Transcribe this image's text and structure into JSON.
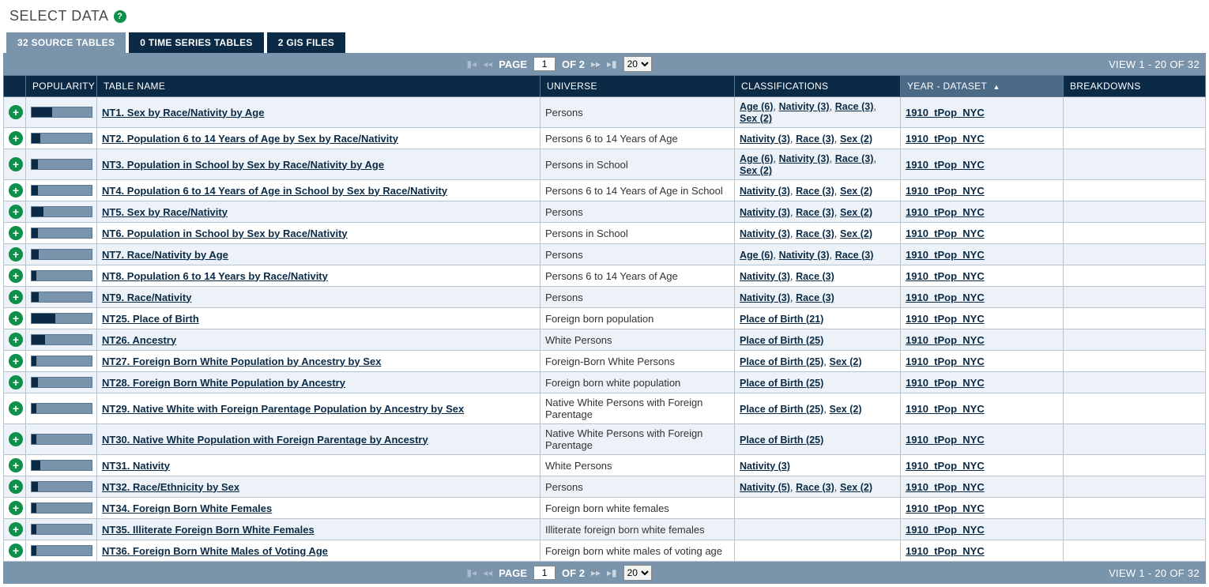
{
  "title": "SELECT DATA",
  "tabs": [
    {
      "label": "32 SOURCE TABLES",
      "active": true
    },
    {
      "label": "0 TIME SERIES TABLES",
      "active": false
    },
    {
      "label": "2 GIS FILES",
      "active": false
    }
  ],
  "pager": {
    "page_label": "PAGE",
    "page_value": "1",
    "of_label": "OF 2",
    "per_page": "20",
    "per_page_options": [
      "20"
    ],
    "view_range": "VIEW 1 - 20 OF 32"
  },
  "columns": {
    "add": "",
    "popularity": "POPULARITY",
    "name": "TABLE NAME",
    "universe": "UNIVERSE",
    "classifications": "CLASSIFICATIONS",
    "year": "YEAR - DATASET",
    "breakdowns": "BREAKDOWNS"
  },
  "rows": [
    {
      "pop": 34,
      "name": "NT1. Sex by Race/Nativity by Age",
      "universe": "Persons",
      "class": [
        [
          "Age (6)"
        ],
        [
          "Nativity (3)"
        ],
        [
          "Race (3)"
        ],
        [
          "Sex (2)"
        ]
      ],
      "year": "1910_tPop_NYC"
    },
    {
      "pop": 15,
      "name": "NT2. Population 6 to 14 Years of Age by Sex by Race/Nativity",
      "universe": "Persons 6 to 14 Years of Age",
      "class": [
        [
          "Nativity (3)"
        ],
        [
          "Race (3)"
        ],
        [
          "Sex (2)"
        ]
      ],
      "year": "1910_tPop_NYC"
    },
    {
      "pop": 10,
      "name": "NT3. Population in School by Sex by Race/Nativity by Age",
      "universe": "Persons in School",
      "class": [
        [
          "Age (6)"
        ],
        [
          "Nativity (3)"
        ],
        [
          "Race (3)"
        ],
        [
          "Sex (2)"
        ]
      ],
      "year": "1910_tPop_NYC"
    },
    {
      "pop": 10,
      "name": "NT4. Population 6 to 14 Years of Age in School by Sex by Race/Nativity",
      "universe": "Persons 6 to 14 Years of Age in School",
      "class": [
        [
          "Nativity (3)"
        ],
        [
          "Race (3)"
        ],
        [
          "Sex (2)"
        ]
      ],
      "year": "1910_tPop_NYC"
    },
    {
      "pop": 20,
      "name": "NT5. Sex by Race/Nativity",
      "universe": "Persons",
      "class": [
        [
          "Nativity (3)"
        ],
        [
          "Race (3)"
        ],
        [
          "Sex (2)"
        ]
      ],
      "year": "1910_tPop_NYC"
    },
    {
      "pop": 10,
      "name": "NT6. Population in School by Sex by Race/Nativity",
      "universe": "Persons in School",
      "class": [
        [
          "Nativity (3)"
        ],
        [
          "Race (3)"
        ],
        [
          "Sex (2)"
        ]
      ],
      "year": "1910_tPop_NYC"
    },
    {
      "pop": 12,
      "name": "NT7. Race/Nativity by Age",
      "universe": "Persons",
      "class": [
        [
          "Age (6)"
        ],
        [
          "Nativity (3)"
        ],
        [
          "Race (3)"
        ]
      ],
      "year": "1910_tPop_NYC"
    },
    {
      "pop": 8,
      "name": "NT8. Population 6 to 14 Years by Race/Nativity",
      "universe": "Persons 6 to 14 Years of Age",
      "class": [
        [
          "Nativity (3)"
        ],
        [
          "Race (3)"
        ]
      ],
      "year": "1910_tPop_NYC"
    },
    {
      "pop": 12,
      "name": "NT9. Race/Nativity",
      "universe": "Persons",
      "class": [
        [
          "Nativity (3)"
        ],
        [
          "Race (3)"
        ]
      ],
      "year": "1910_tPop_NYC"
    },
    {
      "pop": 40,
      "name": "NT25. Place of Birth",
      "universe": "Foreign born population",
      "class": [
        [
          "Place of Birth (21)"
        ]
      ],
      "year": "1910_tPop_NYC"
    },
    {
      "pop": 22,
      "name": "NT26. Ancestry",
      "universe": "White Persons",
      "class": [
        [
          "Place of Birth (25)"
        ]
      ],
      "year": "1910_tPop_NYC"
    },
    {
      "pop": 8,
      "name": "NT27. Foreign Born White Population by Ancestry by Sex",
      "universe": "Foreign-Born White Persons",
      "class": [
        [
          "Place of Birth (25)"
        ],
        [
          "Sex (2)"
        ]
      ],
      "year": "1910_tPop_NYC"
    },
    {
      "pop": 10,
      "name": "NT28. Foreign Born White Population by Ancestry",
      "universe": "Foreign born white population",
      "class": [
        [
          "Place of Birth (25)"
        ]
      ],
      "year": "1910_tPop_NYC"
    },
    {
      "pop": 8,
      "name": "NT29. Native White with Foreign Parentage Population by Ancestry by Sex",
      "universe": "Native White Persons with Foreign Parentage",
      "class": [
        [
          "Place of Birth (25)"
        ],
        [
          "Sex (2)"
        ]
      ],
      "year": "1910_tPop_NYC"
    },
    {
      "pop": 8,
      "name": "NT30. Native White Population with Foreign Parentage by Ancestry",
      "universe": "Native White Persons with Foreign Parentage",
      "class": [
        [
          "Place of Birth (25)"
        ]
      ],
      "year": "1910_tPop_NYC"
    },
    {
      "pop": 15,
      "name": "NT31. Nativity",
      "universe": "White Persons",
      "class": [
        [
          "Nativity (3)"
        ]
      ],
      "year": "1910_tPop_NYC"
    },
    {
      "pop": 10,
      "name": "NT32. Race/Ethnicity by Sex",
      "universe": "Persons",
      "class": [
        [
          "Nativity (5)"
        ],
        [
          "Race (3)"
        ],
        [
          "Sex (2)"
        ]
      ],
      "year": "1910_tPop_NYC"
    },
    {
      "pop": 8,
      "name": "NT34. Foreign Born White Females",
      "universe": "Foreign born white females",
      "class": [],
      "year": "1910_tPop_NYC"
    },
    {
      "pop": 8,
      "name": "NT35. Illiterate Foreign Born White Females",
      "universe": "Illiterate foreign born white females",
      "class": [],
      "year": "1910_tPop_NYC"
    },
    {
      "pop": 8,
      "name": "NT36. Foreign Born White Males of Voting Age",
      "universe": "Foreign born white males of voting age",
      "class": [],
      "year": "1910_tPop_NYC"
    }
  ],
  "colors": {
    "accent_green": "#0e8f4a",
    "navy": "#0a2a46",
    "slate": "#7a94ab",
    "row_alt": "#ecf2f7"
  }
}
